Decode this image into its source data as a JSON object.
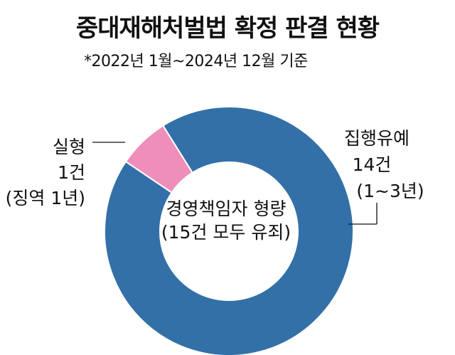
{
  "title": "중대재해처벌법 확정 판결 현황",
  "subtitle": "*2022년 1월~2024년 12월 기준",
  "chart_data": {
    "type": "pie",
    "donut": true,
    "center_label": [
      "경영책임자 형량",
      "(15건 모두 유죄)"
    ],
    "slices": [
      {
        "label": [
          "집행유예",
          "14건",
          "(1~3년)"
        ],
        "value": 14,
        "color": "#3370a8"
      },
      {
        "label": [
          "실형",
          "1건",
          "(징역 1년)"
        ],
        "value": 1,
        "color": "#ef8dbb"
      }
    ]
  }
}
